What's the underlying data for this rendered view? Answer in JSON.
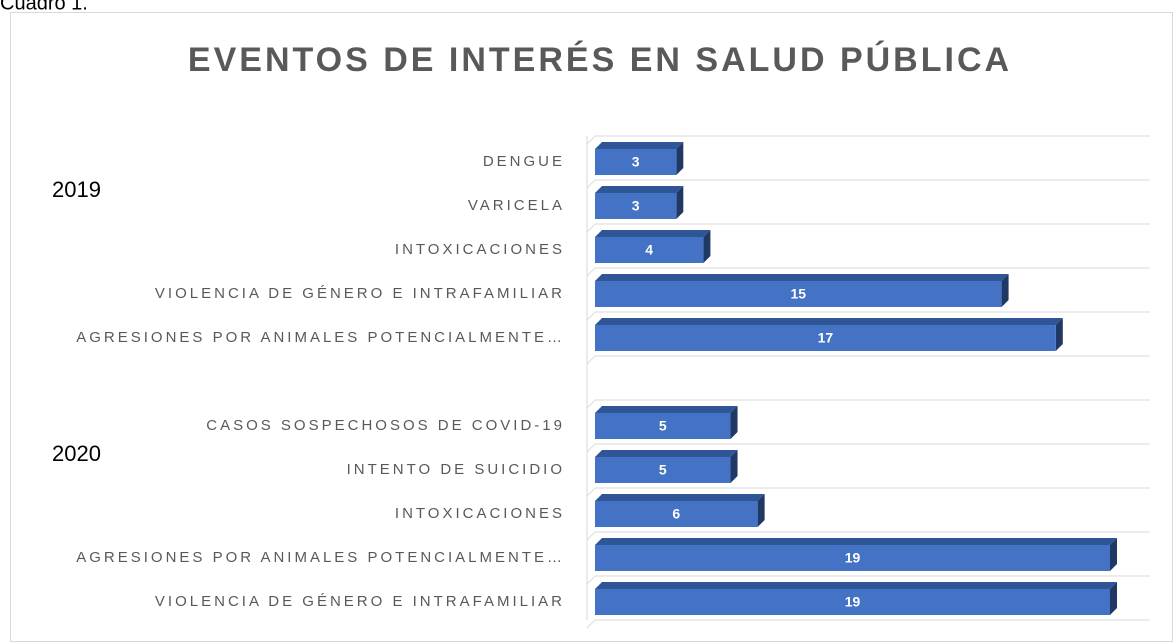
{
  "caption": "Cuadro 1.",
  "chart_data": {
    "type": "bar3d",
    "orientation": "horizontal",
    "title": "EVENTOS DE INTERÉS EN SALUD PÚBLICA",
    "color": "#4472c4",
    "groups": [
      {
        "name": "2019",
        "categories": [
          "DENGUE",
          "VARICELA",
          "INTOXICACIONES",
          "VIOLENCIA DE GÉNERO E INTRAFAMILIAR",
          "AGRESIONES POR ANIMALES POTENCIALMENTE…"
        ],
        "values": [
          3,
          3,
          4,
          15,
          17
        ]
      },
      {
        "name": "2020",
        "categories": [
          "CASOS SOSPECHOSOS DE COVID-19",
          "INTENTO DE SUICIDIO",
          "INTOXICACIONES",
          "AGRESIONES POR ANIMALES POTENCIALMENTE…",
          "VIOLENCIA DE GÉNERO E INTRAFAMILIAR"
        ],
        "values": [
          5,
          5,
          6,
          19,
          19
        ]
      }
    ]
  }
}
